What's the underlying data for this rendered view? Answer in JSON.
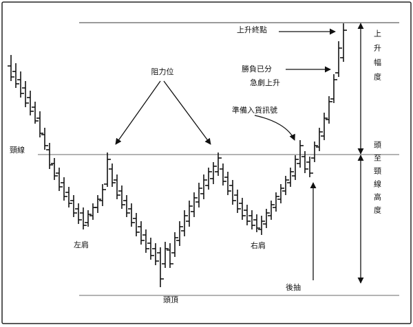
{
  "labels": {
    "resistance": "阻力位",
    "neckline": "頸線",
    "left_shoulder": "左肩",
    "head": "頭頂",
    "right_shoulder": "右肩",
    "pullback": "後抽",
    "buy_signal": "準備入貨訊號",
    "rise_end": "上升終點",
    "decided_line1": "勝負已分",
    "decided_line2": "急劇上升",
    "rise_range": "上升幅度",
    "head_to_neck_height": "頭至頸線高度"
  },
  "colors": {
    "ink": "#111111",
    "guide": "#9a9a9a",
    "frame": "#222222"
  }
}
